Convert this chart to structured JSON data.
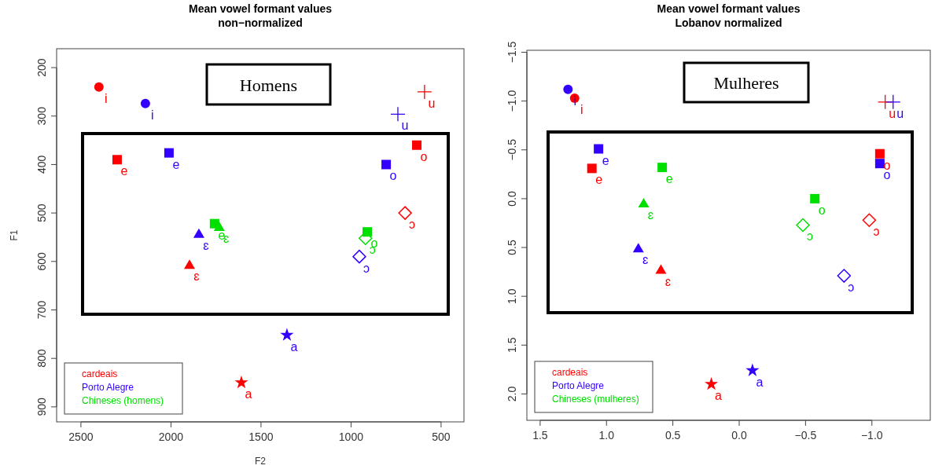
{
  "chart_data": [
    {
      "type": "scatter",
      "title": "Mean vowel formant values",
      "subtitle": "non−normalized",
      "xlabel": "F2",
      "ylabel": "F1",
      "annotations": [
        "Homens"
      ],
      "legend": "bottom left",
      "xlim": [
        2635,
        373
      ],
      "xticks": [
        2500,
        2000,
        1500,
        1000,
        500
      ],
      "ylim": [
        931,
        161
      ],
      "yticks": [
        200,
        300,
        400,
        500,
        600,
        700,
        800,
        900
      ],
      "series": [
        {
          "name": "cardeais",
          "color": "#ff0000",
          "marker": "circle",
          "x": [
            2400
          ],
          "values": [
            240
          ],
          "value_labels": [
            "i"
          ]
        },
        {
          "color": "#ff0000",
          "marker": "square",
          "x": [
            2299
          ],
          "values": [
            390
          ],
          "value_labels": [
            "e"
          ]
        },
        {
          "color": "#ff0000",
          "marker": "triangle",
          "x": [
            1897
          ],
          "values": [
            607
          ],
          "value_labels": [
            "ɛ"
          ]
        },
        {
          "color": "#ff0000",
          "marker": "star",
          "x": [
            1609
          ],
          "values": [
            850
          ],
          "value_labels": [
            "a"
          ]
        },
        {
          "color": "#ff0000",
          "marker": "diamond",
          "x": [
            700
          ],
          "values": [
            500
          ],
          "value_labels": [
            "ɔ"
          ]
        },
        {
          "color": "#ff0000",
          "marker": "square",
          "x": [
            635
          ],
          "values": [
            360
          ],
          "value_labels": [
            "o"
          ]
        },
        {
          "color": "#ff0000",
          "marker": "cross",
          "x": [
            592
          ],
          "values": [
            250
          ],
          "value_labels": [
            "u"
          ]
        },
        {
          "name": "Porto Alegre",
          "color": "#3300ff",
          "marker": "circle",
          "x": [
            2142
          ],
          "values": [
            274
          ],
          "value_labels": [
            "i"
          ]
        },
        {
          "color": "#3300ff",
          "marker": "square",
          "x": [
            2011
          ],
          "values": [
            376
          ],
          "value_labels": [
            "e"
          ]
        },
        {
          "color": "#3300ff",
          "marker": "triangle",
          "x": [
            1845
          ],
          "values": [
            543
          ],
          "value_labels": [
            "ɛ"
          ]
        },
        {
          "color": "#3300ff",
          "marker": "star",
          "x": [
            1356
          ],
          "values": [
            752
          ],
          "value_labels": [
            "a"
          ]
        },
        {
          "color": "#3300ff",
          "marker": "diamond",
          "x": [
            954
          ],
          "values": [
            590
          ],
          "value_labels": [
            "ɔ"
          ]
        },
        {
          "color": "#3300ff",
          "marker": "square",
          "x": [
            805
          ],
          "values": [
            400
          ],
          "value_labels": [
            "o"
          ]
        },
        {
          "color": "#3300ff",
          "marker": "cross",
          "x": [
            740
          ],
          "values": [
            296
          ],
          "value_labels": [
            "u"
          ]
        },
        {
          "name": "Chineses (homens)",
          "color": "#00e000",
          "marker": "square",
          "x": [
            1758
          ],
          "values": [
            522
          ],
          "value_labels": [
            "e"
          ]
        },
        {
          "color": "#00e000",
          "marker": "triangle",
          "x": [
            1732
          ],
          "values": [
            529
          ],
          "value_labels": [
            "ɛ"
          ]
        },
        {
          "color": "#00e000",
          "marker": "diamond",
          "x": [
            920
          ],
          "values": [
            552
          ],
          "value_labels": [
            "ɔ"
          ]
        },
        {
          "color": "#00e000",
          "marker": "square",
          "x": [
            910
          ],
          "values": [
            539
          ],
          "value_labels": [
            "o"
          ]
        }
      ]
    },
    {
      "type": "scatter",
      "title": "Mean vowel formant values",
      "subtitle": "Lobanov normalized",
      "annotations": [
        "Mulheres"
      ],
      "legend": "bottom left",
      "xlim": [
        1.6,
        -1.44
      ],
      "xticks": [
        1.5,
        {
          "value": 1,
          "label": "1.0"
        },
        0.5,
        {
          "value": 0,
          "label": "0.0"
        },
        {
          "value": -0.5,
          "label": "−0.5"
        },
        {
          "value": -1,
          "label": "−1.0"
        }
      ],
      "ylim": [
        2.27,
        -1.52
      ],
      "yticks": [
        {
          "value": -1.5,
          "label": "−1.5"
        },
        {
          "value": -1,
          "label": "−1.0"
        },
        {
          "value": -0.5,
          "label": "−0.5"
        },
        {
          "value": 0,
          "label": "0.0"
        },
        0.5,
        {
          "value": 1,
          "label": "1.0"
        },
        1.5,
        {
          "value": 2,
          "label": "2.0"
        }
      ],
      "series": [
        {
          "name": "cardeais",
          "color": "#ff0000",
          "marker": "circle",
          "x": [
            1.24
          ],
          "values": [
            -1.03
          ],
          "value_labels": [
            "i"
          ]
        },
        {
          "color": "#ff0000",
          "marker": "square",
          "x": [
            1.11
          ],
          "values": [
            -0.31
          ],
          "value_labels": [
            "e"
          ]
        },
        {
          "color": "#ff0000",
          "marker": "triangle",
          "x": [
            0.59
          ],
          "values": [
            0.73
          ],
          "value_labels": [
            "ɛ"
          ]
        },
        {
          "color": "#ff0000",
          "marker": "star",
          "x": [
            0.21
          ],
          "values": [
            1.9
          ],
          "value_labels": [
            "a"
          ]
        },
        {
          "color": "#ff0000",
          "marker": "diamond",
          "x": [
            -0.98
          ],
          "values": [
            0.22
          ],
          "value_labels": [
            "ɔ"
          ]
        },
        {
          "color": "#ff0000",
          "marker": "square",
          "x": [
            -1.06
          ],
          "values": [
            -0.46
          ],
          "value_labels": [
            "o"
          ]
        },
        {
          "color": "#ff0000",
          "marker": "cross",
          "x": [
            -1.1
          ],
          "values": [
            -0.99
          ],
          "value_labels": [
            "u"
          ]
        },
        {
          "name": "Porto Alegre",
          "color": "#3300ff",
          "marker": "circle",
          "x": [
            1.29
          ],
          "values": [
            -1.12
          ],
          "value_labels": [
            "i"
          ]
        },
        {
          "color": "#3300ff",
          "marker": "square",
          "x": [
            1.06
          ],
          "values": [
            -0.51
          ],
          "value_labels": [
            "e"
          ]
        },
        {
          "color": "#3300ff",
          "marker": "triangle",
          "x": [
            0.76
          ],
          "values": [
            0.51
          ],
          "value_labels": [
            "ɛ"
          ]
        },
        {
          "color": "#3300ff",
          "marker": "star",
          "x": [
            -0.1
          ],
          "values": [
            1.76
          ],
          "value_labels": [
            "a"
          ]
        },
        {
          "color": "#3300ff",
          "marker": "diamond",
          "x": [
            -0.79
          ],
          "values": [
            0.79
          ],
          "value_labels": [
            "ɔ"
          ]
        },
        {
          "color": "#3300ff",
          "marker": "square",
          "x": [
            -1.06
          ],
          "values": [
            -0.36
          ],
          "value_labels": [
            "o"
          ]
        },
        {
          "color": "#3300ff",
          "marker": "cross",
          "x": [
            -1.16
          ],
          "values": [
            -0.99
          ],
          "value_labels": [
            "u"
          ]
        },
        {
          "name": "Chineses (mulheres)",
          "color": "#00e000",
          "marker": "square",
          "x": [
            0.58
          ],
          "values": [
            -0.32
          ],
          "value_labels": [
            "e"
          ]
        },
        {
          "color": "#00e000",
          "marker": "triangle",
          "x": [
            0.72
          ],
          "values": [
            0.05
          ],
          "value_labels": [
            "ɛ"
          ]
        },
        {
          "color": "#00e000",
          "marker": "square",
          "x": [
            -0.57
          ],
          "values": [
            0
          ],
          "value_labels": [
            "o"
          ]
        },
        {
          "color": "#00e000",
          "marker": "diamond",
          "x": [
            -0.48
          ],
          "values": [
            0.27
          ],
          "value_labels": [
            "ɔ"
          ]
        }
      ]
    }
  ]
}
